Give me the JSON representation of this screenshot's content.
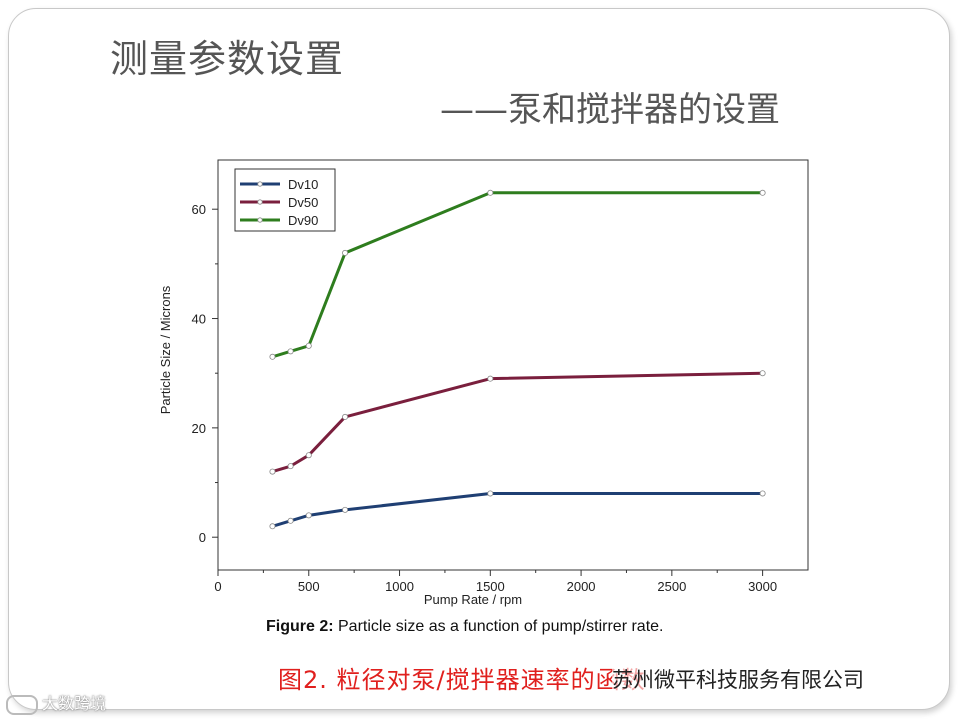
{
  "slide": {
    "title": "测量参数设置",
    "subtitle": "——泵和搅拌器的设置"
  },
  "figure": {
    "caption_bold": "Figure 2:",
    "caption_rest": " Particle size as a function of pump/stirrer rate.",
    "cn_caption": "图2. 粒径对泵/搅拌器速率的函数"
  },
  "watermarks": {
    "right": "苏州微平科技服务有限公司",
    "left": "大数跨境"
  },
  "chart_data": {
    "type": "line",
    "xlabel": "Pump Rate / rpm",
    "ylabel": "Particle Size / Microns",
    "xlim": [
      0,
      3250
    ],
    "ylim": [
      -6,
      69
    ],
    "xticks": [
      0,
      500,
      1000,
      1500,
      2000,
      2500,
      3000
    ],
    "yticks": [
      0,
      20,
      40,
      60
    ],
    "legend_position": "top-left",
    "series": [
      {
        "name": "Dv10",
        "color": "#1f3f73",
        "x": [
          300,
          400,
          500,
          700,
          1500,
          3000
        ],
        "y": [
          2,
          3,
          4,
          5,
          8,
          8
        ]
      },
      {
        "name": "Dv50",
        "color": "#7a1f3d",
        "x": [
          300,
          400,
          500,
          700,
          1500,
          3000
        ],
        "y": [
          12,
          13,
          15,
          22,
          29,
          30
        ]
      },
      {
        "name": "Dv90",
        "color": "#2e7d1e",
        "x": [
          300,
          400,
          500,
          700,
          1500,
          3000
        ],
        "y": [
          33,
          34,
          35,
          52,
          63,
          63
        ]
      }
    ]
  }
}
